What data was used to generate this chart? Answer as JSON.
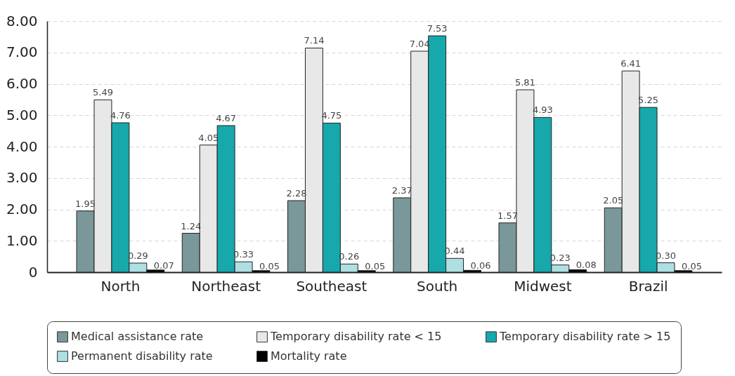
{
  "chart_data": {
    "type": "bar",
    "categories": [
      "North",
      "Northeast",
      "Southeast",
      "South",
      "Midwest",
      "Brazil"
    ],
    "series": [
      {
        "name": "Medical assistance rate",
        "color": "#7a9799",
        "values": [
          1.95,
          1.24,
          2.28,
          2.37,
          1.57,
          2.05
        ]
      },
      {
        "name": "Temporary disability rate < 15",
        "color": "#e8e8e8",
        "values": [
          5.49,
          4.05,
          7.14,
          7.04,
          5.81,
          6.41
        ]
      },
      {
        "name": "Temporary disability rate > 15",
        "color": "#17a8ab",
        "values": [
          4.76,
          4.67,
          4.75,
          7.53,
          4.93,
          5.25
        ]
      },
      {
        "name": "Permanent disability rate",
        "color": "#aedfe3",
        "values": [
          0.29,
          0.33,
          0.26,
          0.44,
          0.23,
          0.3
        ]
      },
      {
        "name": "Mortality rate",
        "color": "#000000",
        "values": [
          0.07,
          0.05,
          0.05,
          0.06,
          0.08,
          0.05
        ]
      }
    ],
    "ylim": [
      0,
      8
    ],
    "yticks": [
      0,
      {
        "value": 1,
        "label": "1.00"
      },
      {
        "value": 2,
        "label": "2.00"
      },
      {
        "value": 3,
        "label": "3.00"
      },
      {
        "value": 4,
        "label": "4.00"
      },
      {
        "value": 5,
        "label": "5.00"
      },
      {
        "value": 6,
        "label": "6.00"
      },
      {
        "value": 7,
        "label": "7.00"
      },
      {
        "value": 8,
        "label": "8.00"
      }
    ],
    "value_labels": [
      [
        "1.95",
        "1.24",
        "2.28",
        "2.37",
        "1.57",
        "2.05"
      ],
      [
        "5.49",
        "4.05",
        "7.14",
        "7.04",
        "5.81",
        "6.41"
      ],
      [
        "4.76",
        "4.67",
        "4.75",
        "7.53",
        "4.93",
        "5.25"
      ],
      [
        "0.29",
        "0.33",
        "0.26",
        "0.44",
        "0.23",
        "0.30"
      ],
      [
        "0.07",
        "0.05",
        "0.05",
        "0.06",
        "0.08",
        "0.05"
      ]
    ],
    "grid": "y",
    "legend": "bottom"
  }
}
